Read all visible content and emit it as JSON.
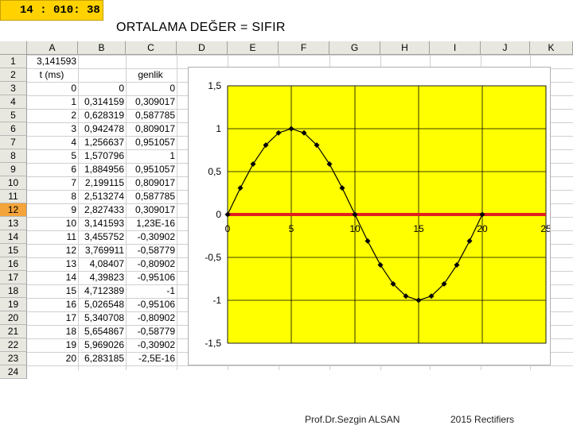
{
  "timer": "14  : 010: 38",
  "title": "ORTALAMA DEĞER  = SIFIR",
  "columns": [
    "A",
    "B",
    "C",
    "D",
    "E",
    "F",
    "G",
    "H",
    "I",
    "J",
    "K"
  ],
  "rows": [
    "1",
    "2",
    "3",
    "4",
    "5",
    "6",
    "7",
    "8",
    "9",
    "10",
    "11",
    "12",
    "13",
    "14",
    "15",
    "16",
    "17",
    "18",
    "19",
    "20",
    "21",
    "22",
    "23",
    "24"
  ],
  "selected_row": "12",
  "cells": {
    "A1": "3,141593",
    "A2": "t (ms)",
    "C2": "genlik",
    "A": [
      "0",
      "1",
      "2",
      "3",
      "4",
      "5",
      "6",
      "7",
      "8",
      "9",
      "10",
      "11",
      "12",
      "13",
      "14",
      "15",
      "16",
      "17",
      "18",
      "19",
      "20"
    ],
    "B": [
      "0",
      "0,314159",
      "0,628319",
      "0,942478",
      "1,256637",
      "1,570796",
      "1,884956",
      "2,199115",
      "2,513274",
      "2,827433",
      "3,141593",
      "3,455752",
      "3,769911",
      "4,08407",
      "4,39823",
      "4,712389",
      "5,026548",
      "5,340708",
      "5,654867",
      "5,969026",
      "6,283185"
    ],
    "C": [
      "0",
      "0,309017",
      "0,587785",
      "0,809017",
      "0,951057",
      "1",
      "0,951057",
      "0,809017",
      "0,587785",
      "0,309017",
      "1,23E-16",
      "-0,30902",
      "-0,58779",
      "-0,80902",
      "-0,95106",
      "-1",
      "-0,95106",
      "-0,80902",
      "-0,58779",
      "-0,30902",
      "-2,5E-16"
    ]
  },
  "chart_data": {
    "type": "line",
    "title": "",
    "xlabel": "",
    "ylabel": "",
    "xlim": [
      0,
      25
    ],
    "ylim": [
      -1.5,
      1.5
    ],
    "x_ticks": [
      "0",
      "5",
      "10",
      "15",
      "20",
      "25"
    ],
    "y_ticks": [
      "1,5",
      "1",
      "0,5",
      "0",
      "-0,5",
      "-1",
      "-1,5"
    ],
    "x_tick_values": [
      0,
      5,
      10,
      15,
      20,
      25
    ],
    "y_tick_values": [
      1.5,
      1,
      0.5,
      0,
      -0.5,
      -1,
      -1.5
    ],
    "grid": true,
    "plot_background": "#ffff00",
    "series": [
      {
        "color": "#000000",
        "marker": "diamond",
        "x": [
          0,
          1,
          2,
          3,
          4,
          5,
          6,
          7,
          8,
          9,
          10,
          11,
          12,
          13,
          14,
          15,
          16,
          17,
          18,
          19,
          20
        ],
        "y": [
          0,
          0.309017,
          0.587785,
          0.809017,
          0.951057,
          1,
          0.951057,
          0.809017,
          0.587785,
          0.309017,
          0,
          -0.30902,
          -0.58779,
          -0.80902,
          -0.95106,
          -1,
          -0.95106,
          -0.80902,
          -0.58779,
          -0.30902,
          0
        ]
      },
      {
        "color": "#e02020",
        "marker": "none",
        "x": [
          0,
          25
        ],
        "y": [
          0,
          0
        ]
      }
    ]
  },
  "footer": {
    "author": "Prof.Dr.Sezgin ALSAN",
    "course": "2015 Rectifiers"
  }
}
